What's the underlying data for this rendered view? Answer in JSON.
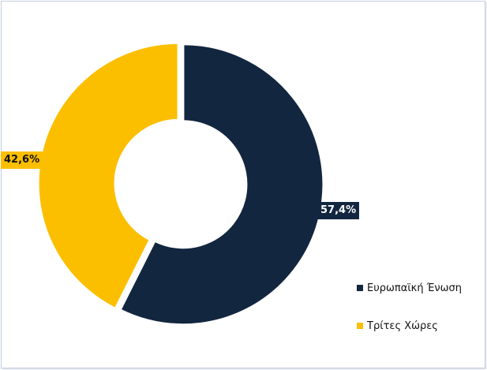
{
  "chart_data": {
    "type": "pie",
    "donut": true,
    "title": "",
    "categories": [
      "Ευρωπαϊκή Ένωση",
      "Τρίτες Χώρες"
    ],
    "values": [
      57.4,
      42.6
    ],
    "data_labels": [
      "57,4%",
      "42,6%"
    ],
    "colors": [
      "#13263f",
      "#fcbf00"
    ],
    "legend_position": "bottom-right",
    "start_angle": "top",
    "direction": "clockwise"
  }
}
